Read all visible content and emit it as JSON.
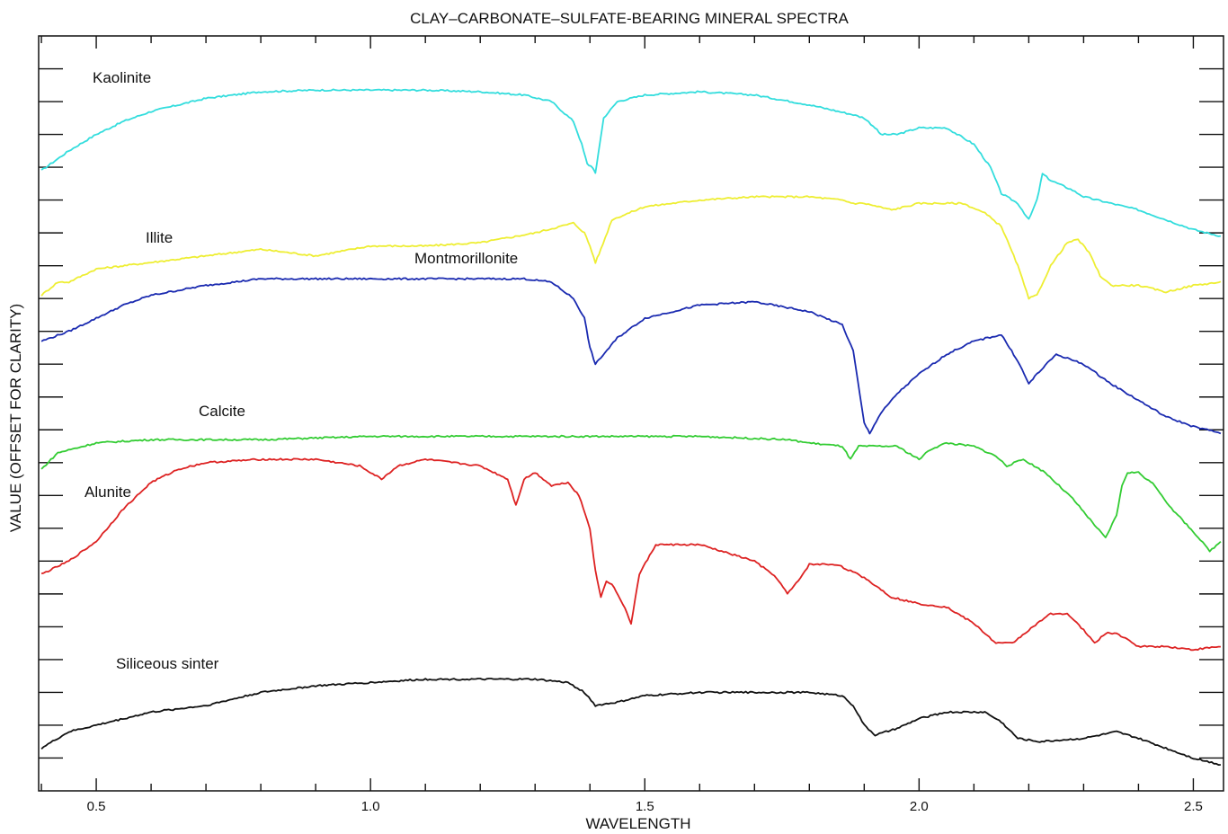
{
  "chart_data": {
    "type": "line",
    "title": "CLAY–CARBONATE–SULFATE-BEARING MINERAL SPECTRA",
    "xlabel": "WAVELENGTH",
    "ylabel": "VALUE (OFFSET FOR CLARITY)",
    "xlim": [
      0.395,
      2.555
    ],
    "ylim": [
      0,
      23
    ],
    "x_ticks": [
      0.5,
      1.0,
      1.5,
      2.0,
      2.5
    ],
    "x_tick_labels": [
      "0.5",
      "1.0",
      "1.5",
      "2.0",
      "2.5"
    ],
    "y_tick_labels_shown": false,
    "grid": false,
    "legend": "none (series labeled on plot)",
    "series": [
      {
        "name": "Kaolinite",
        "color": "#33dddd",
        "points": [
          [
            0.4,
            18.9
          ],
          [
            0.45,
            19.5
          ],
          [
            0.5,
            20.0
          ],
          [
            0.55,
            20.4
          ],
          [
            0.6,
            20.7
          ],
          [
            0.7,
            21.1
          ],
          [
            0.8,
            21.3
          ],
          [
            0.9,
            21.35
          ],
          [
            1.0,
            21.35
          ],
          [
            1.1,
            21.35
          ],
          [
            1.2,
            21.3
          ],
          [
            1.28,
            21.2
          ],
          [
            1.33,
            21.0
          ],
          [
            1.37,
            20.4
          ],
          [
            1.385,
            19.7
          ],
          [
            1.395,
            19.1
          ],
          [
            1.405,
            19.0
          ],
          [
            1.41,
            18.8
          ],
          [
            1.415,
            19.4
          ],
          [
            1.425,
            20.5
          ],
          [
            1.45,
            21.0
          ],
          [
            1.5,
            21.2
          ],
          [
            1.6,
            21.3
          ],
          [
            1.7,
            21.2
          ],
          [
            1.8,
            20.9
          ],
          [
            1.88,
            20.6
          ],
          [
            1.9,
            20.5
          ],
          [
            1.92,
            20.2
          ],
          [
            1.93,
            20.0
          ],
          [
            1.96,
            20.0
          ],
          [
            2.0,
            20.2
          ],
          [
            2.05,
            20.2
          ],
          [
            2.1,
            19.7
          ],
          [
            2.13,
            19.0
          ],
          [
            2.15,
            18.2
          ],
          [
            2.18,
            17.9
          ],
          [
            2.2,
            17.4
          ],
          [
            2.215,
            18.0
          ],
          [
            2.225,
            18.8
          ],
          [
            2.24,
            18.6
          ],
          [
            2.28,
            18.3
          ],
          [
            2.3,
            18.1
          ],
          [
            2.35,
            17.9
          ],
          [
            2.4,
            17.7
          ],
          [
            2.45,
            17.4
          ],
          [
            2.5,
            17.1
          ],
          [
            2.55,
            16.9
          ]
        ]
      },
      {
        "name": "Illite",
        "color": "#eeee33",
        "points": [
          [
            0.4,
            15.1
          ],
          [
            0.43,
            15.5
          ],
          [
            0.45,
            15.5
          ],
          [
            0.5,
            15.9
          ],
          [
            0.6,
            16.1
          ],
          [
            0.7,
            16.3
          ],
          [
            0.8,
            16.5
          ],
          [
            0.9,
            16.3
          ],
          [
            1.0,
            16.6
          ],
          [
            1.1,
            16.6
          ],
          [
            1.2,
            16.7
          ],
          [
            1.3,
            17.0
          ],
          [
            1.37,
            17.3
          ],
          [
            1.39,
            17.0
          ],
          [
            1.4,
            16.6
          ],
          [
            1.41,
            16.1
          ],
          [
            1.42,
            16.5
          ],
          [
            1.44,
            17.4
          ],
          [
            1.5,
            17.8
          ],
          [
            1.6,
            18.0
          ],
          [
            1.7,
            18.1
          ],
          [
            1.8,
            18.1
          ],
          [
            1.86,
            18.0
          ],
          [
            1.88,
            17.9
          ],
          [
            1.9,
            17.9
          ],
          [
            1.95,
            17.7
          ],
          [
            2.0,
            17.9
          ],
          [
            2.08,
            17.9
          ],
          [
            2.12,
            17.6
          ],
          [
            2.15,
            17.2
          ],
          [
            2.18,
            16.0
          ],
          [
            2.2,
            15.0
          ],
          [
            2.215,
            15.1
          ],
          [
            2.24,
            16.0
          ],
          [
            2.27,
            16.7
          ],
          [
            2.29,
            16.8
          ],
          [
            2.31,
            16.4
          ],
          [
            2.33,
            15.7
          ],
          [
            2.35,
            15.4
          ],
          [
            2.4,
            15.4
          ],
          [
            2.45,
            15.2
          ],
          [
            2.5,
            15.4
          ],
          [
            2.55,
            15.5
          ]
        ]
      },
      {
        "name": "Montmorillonite",
        "color": "#1a2ab0",
        "points": [
          [
            0.4,
            13.7
          ],
          [
            0.45,
            14.0
          ],
          [
            0.5,
            14.4
          ],
          [
            0.55,
            14.8
          ],
          [
            0.6,
            15.1
          ],
          [
            0.7,
            15.4
          ],
          [
            0.8,
            15.6
          ],
          [
            0.9,
            15.6
          ],
          [
            1.0,
            15.6
          ],
          [
            1.1,
            15.6
          ],
          [
            1.2,
            15.6
          ],
          [
            1.28,
            15.6
          ],
          [
            1.33,
            15.5
          ],
          [
            1.37,
            15.0
          ],
          [
            1.39,
            14.4
          ],
          [
            1.4,
            13.5
          ],
          [
            1.41,
            13.0
          ],
          [
            1.42,
            13.2
          ],
          [
            1.45,
            13.8
          ],
          [
            1.5,
            14.4
          ],
          [
            1.6,
            14.8
          ],
          [
            1.7,
            14.9
          ],
          [
            1.8,
            14.6
          ],
          [
            1.86,
            14.2
          ],
          [
            1.88,
            13.4
          ],
          [
            1.9,
            11.2
          ],
          [
            1.91,
            10.9
          ],
          [
            1.93,
            11.5
          ],
          [
            1.96,
            12.1
          ],
          [
            2.0,
            12.7
          ],
          [
            2.05,
            13.3
          ],
          [
            2.1,
            13.7
          ],
          [
            2.15,
            13.9
          ],
          [
            2.18,
            13.1
          ],
          [
            2.2,
            12.4
          ],
          [
            2.215,
            12.7
          ],
          [
            2.25,
            13.3
          ],
          [
            2.3,
            13.0
          ],
          [
            2.35,
            12.4
          ],
          [
            2.4,
            11.9
          ],
          [
            2.45,
            11.4
          ],
          [
            2.5,
            11.1
          ],
          [
            2.55,
            10.9
          ]
        ]
      },
      {
        "name": "Calcite",
        "color": "#33cc33",
        "points": [
          [
            0.4,
            9.8
          ],
          [
            0.43,
            10.3
          ],
          [
            0.5,
            10.6
          ],
          [
            0.6,
            10.7
          ],
          [
            0.8,
            10.7
          ],
          [
            1.0,
            10.8
          ],
          [
            1.2,
            10.8
          ],
          [
            1.4,
            10.8
          ],
          [
            1.6,
            10.8
          ],
          [
            1.76,
            10.7
          ],
          [
            1.8,
            10.6
          ],
          [
            1.86,
            10.5
          ],
          [
            1.875,
            10.1
          ],
          [
            1.89,
            10.5
          ],
          [
            1.92,
            10.5
          ],
          [
            1.96,
            10.5
          ],
          [
            2.0,
            10.1
          ],
          [
            2.02,
            10.4
          ],
          [
            2.05,
            10.6
          ],
          [
            2.1,
            10.5
          ],
          [
            2.14,
            10.2
          ],
          [
            2.16,
            9.9
          ],
          [
            2.19,
            10.1
          ],
          [
            2.23,
            9.7
          ],
          [
            2.28,
            8.9
          ],
          [
            2.32,
            8.1
          ],
          [
            2.34,
            7.7
          ],
          [
            2.36,
            8.4
          ],
          [
            2.37,
            9.3
          ],
          [
            2.38,
            9.7
          ],
          [
            2.4,
            9.7
          ],
          [
            2.43,
            9.3
          ],
          [
            2.46,
            8.6
          ],
          [
            2.5,
            7.9
          ],
          [
            2.53,
            7.3
          ],
          [
            2.55,
            7.6
          ]
        ]
      },
      {
        "name": "Alunite",
        "color": "#dd2222",
        "points": [
          [
            0.4,
            6.6
          ],
          [
            0.45,
            7.0
          ],
          [
            0.5,
            7.6
          ],
          [
            0.55,
            8.6
          ],
          [
            0.6,
            9.4
          ],
          [
            0.65,
            9.8
          ],
          [
            0.7,
            10.0
          ],
          [
            0.8,
            10.1
          ],
          [
            0.9,
            10.1
          ],
          [
            0.98,
            9.9
          ],
          [
            1.02,
            9.5
          ],
          [
            1.05,
            9.9
          ],
          [
            1.1,
            10.1
          ],
          [
            1.2,
            9.9
          ],
          [
            1.25,
            9.5
          ],
          [
            1.265,
            8.7
          ],
          [
            1.28,
            9.5
          ],
          [
            1.3,
            9.7
          ],
          [
            1.33,
            9.3
          ],
          [
            1.36,
            9.4
          ],
          [
            1.38,
            9.0
          ],
          [
            1.4,
            8.0
          ],
          [
            1.41,
            6.7
          ],
          [
            1.42,
            5.9
          ],
          [
            1.43,
            6.4
          ],
          [
            1.44,
            6.3
          ],
          [
            1.46,
            5.7
          ],
          [
            1.475,
            5.1
          ],
          [
            1.49,
            6.6
          ],
          [
            1.52,
            7.5
          ],
          [
            1.6,
            7.5
          ],
          [
            1.7,
            7.0
          ],
          [
            1.74,
            6.5
          ],
          [
            1.76,
            6.0
          ],
          [
            1.78,
            6.4
          ],
          [
            1.8,
            6.9
          ],
          [
            1.85,
            6.9
          ],
          [
            1.9,
            6.5
          ],
          [
            1.95,
            5.9
          ],
          [
            2.0,
            5.7
          ],
          [
            2.05,
            5.6
          ],
          [
            2.1,
            5.1
          ],
          [
            2.14,
            4.5
          ],
          [
            2.17,
            4.5
          ],
          [
            2.2,
            4.9
          ],
          [
            2.24,
            5.4
          ],
          [
            2.27,
            5.4
          ],
          [
            2.3,
            4.9
          ],
          [
            2.32,
            4.5
          ],
          [
            2.34,
            4.8
          ],
          [
            2.36,
            4.8
          ],
          [
            2.4,
            4.4
          ],
          [
            2.45,
            4.4
          ],
          [
            2.5,
            4.3
          ],
          [
            2.55,
            4.4
          ]
        ]
      },
      {
        "name": "Siliceous sinter",
        "color": "#111111",
        "points": [
          [
            0.4,
            1.3
          ],
          [
            0.45,
            1.8
          ],
          [
            0.5,
            2.0
          ],
          [
            0.6,
            2.4
          ],
          [
            0.7,
            2.6
          ],
          [
            0.8,
            3.0
          ],
          [
            0.9,
            3.2
          ],
          [
            1.0,
            3.3
          ],
          [
            1.1,
            3.4
          ],
          [
            1.2,
            3.4
          ],
          [
            1.3,
            3.4
          ],
          [
            1.36,
            3.3
          ],
          [
            1.39,
            3.0
          ],
          [
            1.41,
            2.6
          ],
          [
            1.45,
            2.7
          ],
          [
            1.5,
            2.9
          ],
          [
            1.6,
            3.0
          ],
          [
            1.7,
            3.0
          ],
          [
            1.8,
            3.0
          ],
          [
            1.86,
            2.9
          ],
          [
            1.88,
            2.6
          ],
          [
            1.9,
            2.0
          ],
          [
            1.92,
            1.7
          ],
          [
            1.96,
            1.9
          ],
          [
            2.0,
            2.2
          ],
          [
            2.05,
            2.4
          ],
          [
            2.12,
            2.4
          ],
          [
            2.15,
            2.1
          ],
          [
            2.18,
            1.6
          ],
          [
            2.22,
            1.5
          ],
          [
            2.3,
            1.6
          ],
          [
            2.36,
            1.8
          ],
          [
            2.4,
            1.6
          ],
          [
            2.45,
            1.3
          ],
          [
            2.5,
            1.0
          ],
          [
            2.55,
            0.8
          ]
        ]
      }
    ],
    "series_label_text": [
      "Kaolinite",
      "Illite",
      "Montmorillonite",
      "Calcite",
      "Alunite",
      "Siliceous sinter"
    ]
  }
}
